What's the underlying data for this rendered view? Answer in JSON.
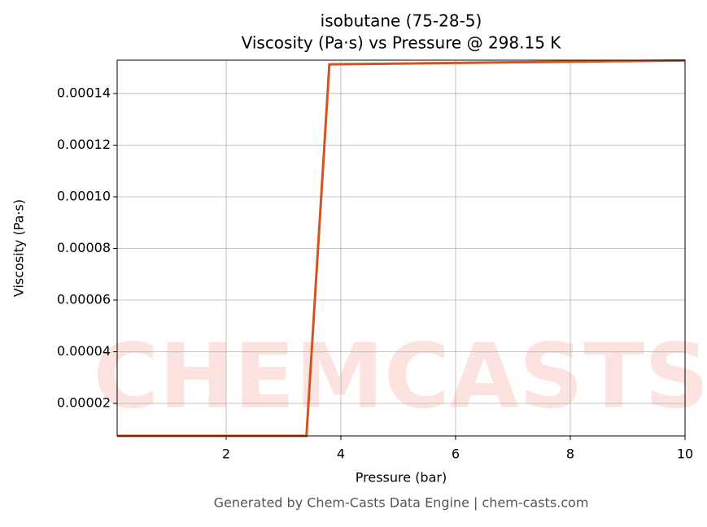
{
  "chart_data": {
    "type": "line",
    "title": "isobutane (75-28-5)",
    "subtitle": "Viscosity (Pa·s) vs Pressure @ 298.15 K",
    "x_label": "Pressure (bar)",
    "y_label": "Viscosity (Pa·s)",
    "watermark": "CHEMCASTS",
    "footer": "Generated by Chem-Casts Data Engine | chem-casts.com",
    "x": [
      0.1,
      3.4,
      3.8,
      10
    ],
    "series": [
      {
        "name": "Viscosity",
        "color": "#d4541f",
        "values": [
          7.4e-06,
          7.4e-06,
          0.0001513,
          0.0001528
        ]
      }
    ],
    "xlim": [
      0.1,
      10
    ],
    "ylim": [
      7.4e-06,
      0.0001529
    ],
    "xticks": [
      2,
      4,
      6,
      8,
      10
    ],
    "yticks": [
      2e-05,
      4e-05,
      6e-05,
      8e-05,
      {
        "value": 0.0001,
        "label": "0.00010"
      },
      0.00012,
      0.00014
    ],
    "grid": true
  }
}
